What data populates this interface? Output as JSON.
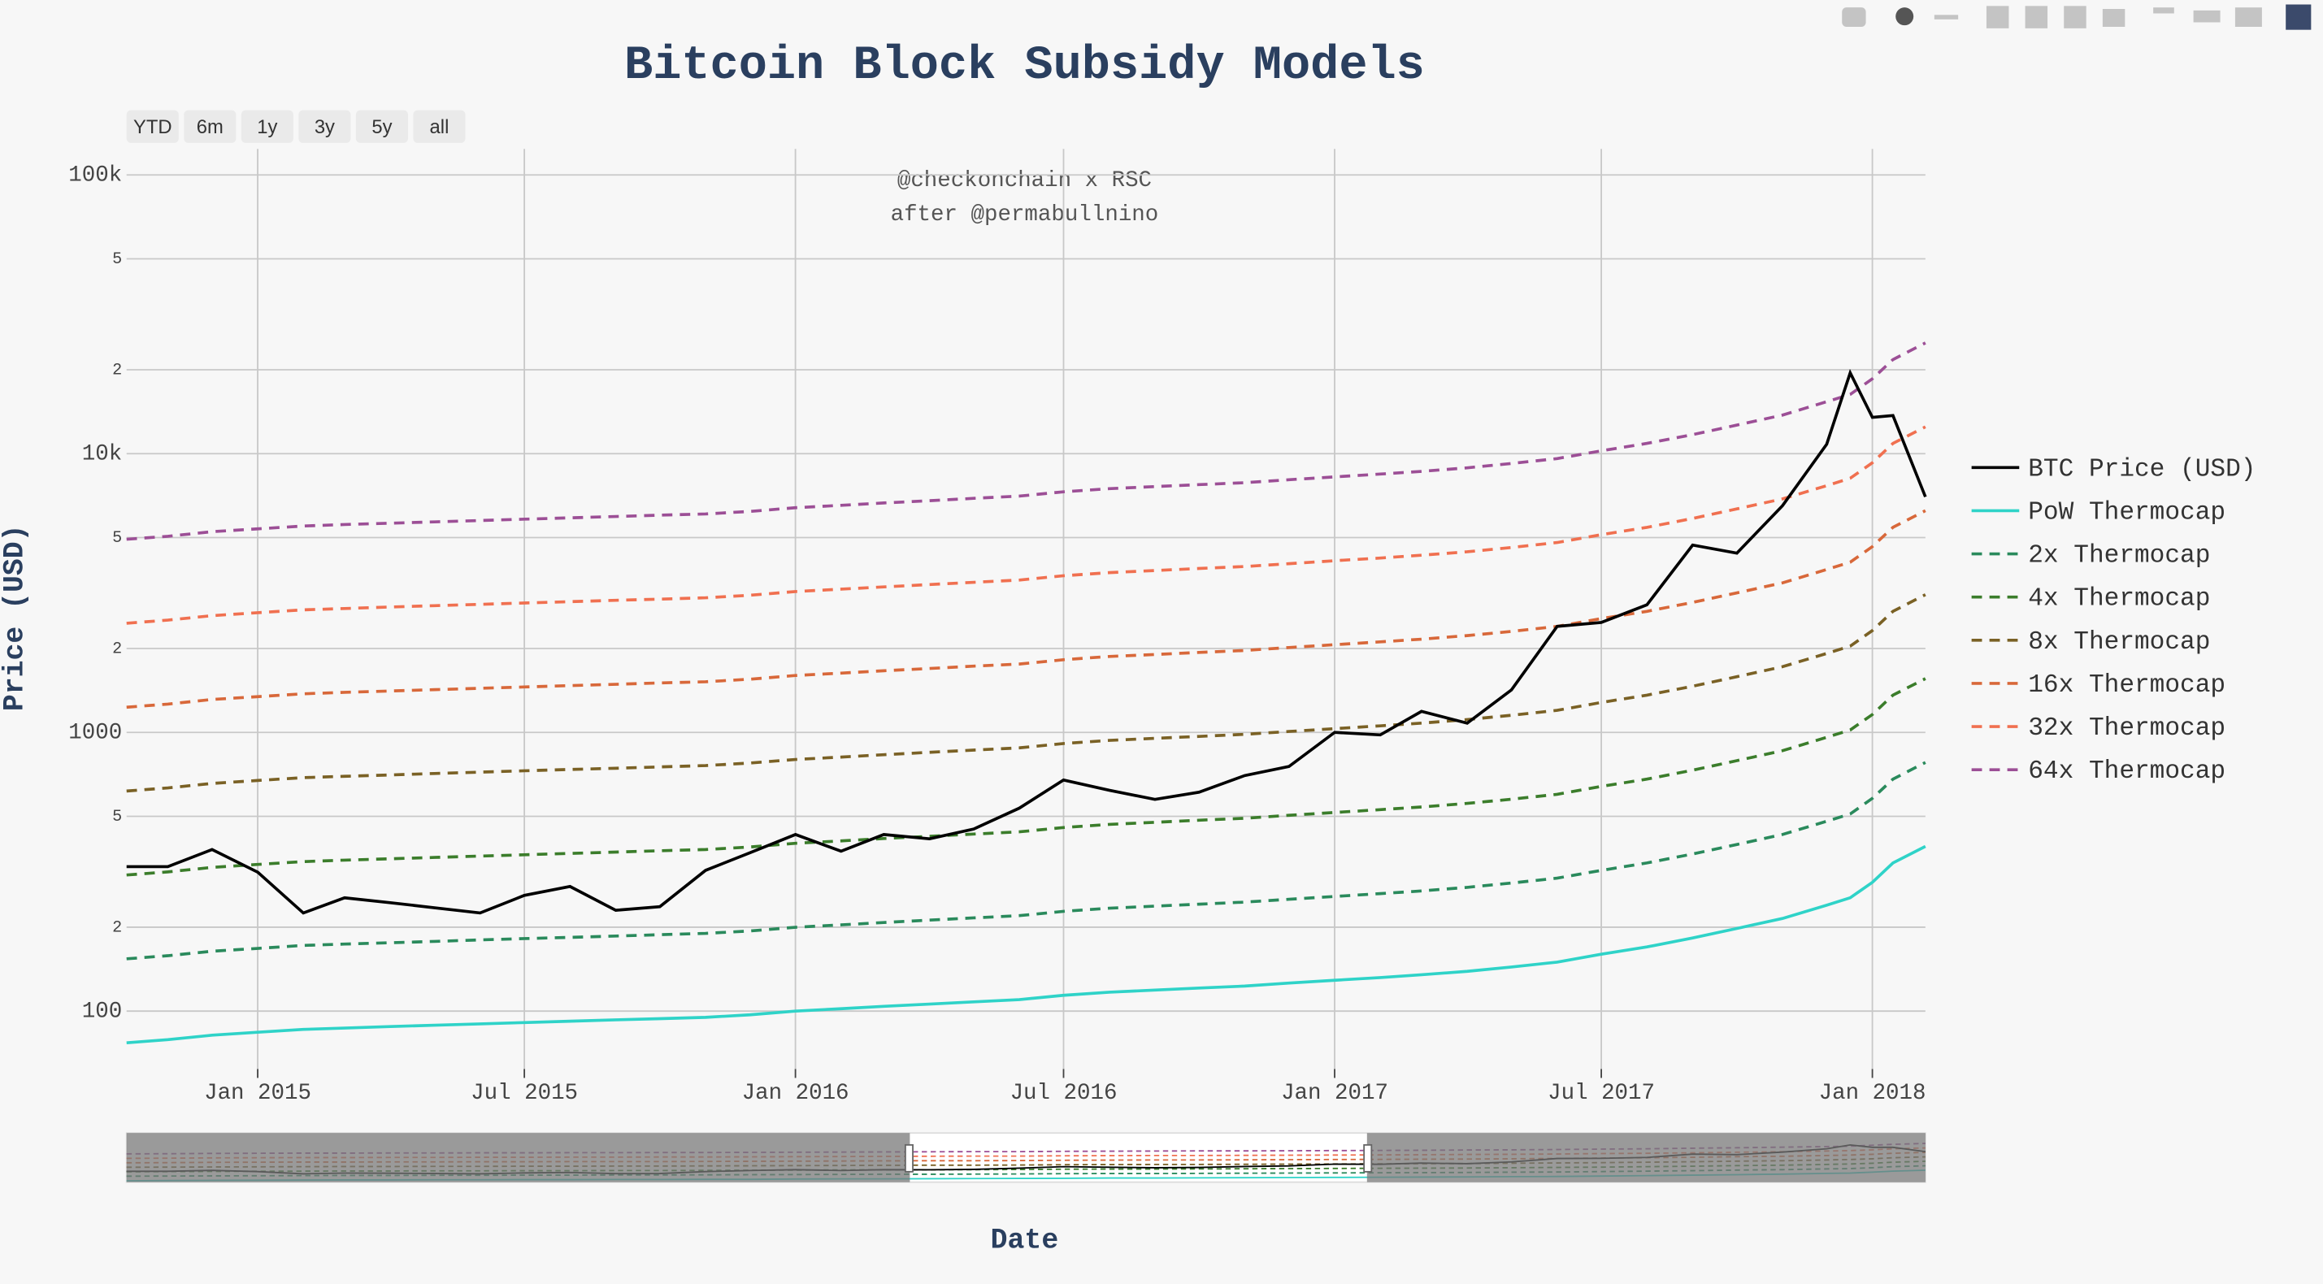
{
  "chart_data": {
    "type": "line",
    "title": "Bitcoin Block Subsidy Models",
    "annotations": [
      "@checkonchain x RSC",
      "after @permabullnino"
    ],
    "range_buttons": [
      "YTD",
      "6m",
      "1y",
      "3y",
      "5y",
      "all"
    ],
    "x_label": "Date",
    "y_label": "Price (USD)",
    "log_y": true,
    "grid": true,
    "legend": "right",
    "xlim": [
      "2014-10-04",
      "2018-02-06"
    ],
    "xticks": [
      {
        "value": "2015-01-01",
        "label": "Jan 2015"
      },
      {
        "value": "2015-07-01",
        "label": "Jul 2015"
      },
      {
        "value": "2016-01-01",
        "label": "Jan 2016"
      },
      {
        "value": "2016-07-01",
        "label": "Jul 2016"
      },
      {
        "value": "2017-01-01",
        "label": "Jan 2017"
      },
      {
        "value": "2017-07-01",
        "label": "Jul 2017"
      },
      {
        "value": "2018-01-01",
        "label": "Jan 2018"
      }
    ],
    "ylim": [
      62,
      124000
    ],
    "yticks": [
      100,
      {
        "value": 200,
        "label": "2"
      },
      {
        "value": 500,
        "label": "5"
      },
      1000,
      {
        "value": 2000,
        "label": "2"
      },
      {
        "value": 5000,
        "label": "5"
      },
      {
        "value": 10000,
        "label": "10k"
      },
      {
        "value": 20000,
        "label": "2"
      },
      {
        "value": 50000,
        "label": "5"
      },
      {
        "value": 100000,
        "label": "100k"
      }
    ],
    "x": [
      "2014-10-04",
      "2014-11-01",
      "2014-12-01",
      "2015-01-01",
      "2015-02-01",
      "2015-03-01",
      "2015-04-01",
      "2015-05-01",
      "2015-06-01",
      "2015-07-01",
      "2015-08-01",
      "2015-09-01",
      "2015-10-01",
      "2015-11-01",
      "2015-12-01",
      "2016-01-01",
      "2016-02-01",
      "2016-03-01",
      "2016-04-01",
      "2016-05-01",
      "2016-06-01",
      "2016-07-01",
      "2016-08-01",
      "2016-09-01",
      "2016-10-01",
      "2016-11-01",
      "2016-12-01",
      "2017-01-01",
      "2017-02-01",
      "2017-03-01",
      "2017-04-01",
      "2017-05-01",
      "2017-06-01",
      "2017-07-01",
      "2017-08-01",
      "2017-09-01",
      "2017-10-01",
      "2017-11-01",
      "2017-12-01",
      "2017-12-17",
      "2018-01-01",
      "2018-01-15",
      "2018-02-06"
    ],
    "series": [
      {
        "name": "BTC Price (USD)",
        "color": "#000000",
        "dash": false,
        "values": [
          330,
          330,
          380,
          315,
          225,
          255,
          245,
          235,
          225,
          260,
          280,
          230,
          237,
          320,
          370,
          430,
          375,
          430,
          415,
          450,
          535,
          675,
          620,
          575,
          610,
          700,
          755,
          1000,
          980,
          1190,
          1080,
          1420,
          2400,
          2480,
          2870,
          4700,
          4400,
          6500,
          10800,
          19500,
          13500,
          13700,
          7000
        ]
      },
      {
        "name": "PoW Thermocap",
        "color": "#2fd3c8",
        "dash": false,
        "values": [
          77,
          79,
          82,
          84,
          86,
          87,
          88,
          89,
          90,
          91,
          92,
          93,
          94,
          95,
          97,
          100,
          102,
          104,
          106,
          108,
          110,
          114,
          117,
          119,
          121,
          123,
          126,
          129,
          132,
          135,
          139,
          144,
          150,
          160,
          170,
          183,
          198,
          215,
          240,
          255,
          290,
          340,
          390
        ]
      },
      {
        "name": "2x Thermocap",
        "color": "#2a8a5c",
        "dash": true,
        "values": [
          154,
          158,
          164,
          168,
          172,
          174,
          176,
          178,
          180,
          182,
          184,
          186,
          188,
          190,
          194,
          200,
          204,
          208,
          212,
          216,
          220,
          228,
          234,
          238,
          242,
          246,
          252,
          258,
          264,
          270,
          278,
          288,
          300,
          320,
          340,
          366,
          396,
          430,
          480,
          510,
          580,
          680,
          780
        ]
      },
      {
        "name": "4x Thermocap",
        "color": "#3b7d2b",
        "dash": true,
        "values": [
          308,
          316,
          328,
          336,
          344,
          348,
          352,
          356,
          360,
          364,
          368,
          372,
          376,
          380,
          388,
          400,
          408,
          416,
          424,
          432,
          440,
          456,
          468,
          476,
          484,
          492,
          504,
          516,
          528,
          540,
          556,
          576,
          600,
          640,
          680,
          732,
          792,
          860,
          960,
          1020,
          1160,
          1360,
          1560
        ]
      },
      {
        "name": "8x Thermocap",
        "color": "#7a6125",
        "dash": true,
        "values": [
          616,
          632,
          656,
          672,
          688,
          696,
          704,
          712,
          720,
          728,
          736,
          744,
          752,
          760,
          776,
          800,
          816,
          832,
          848,
          864,
          880,
          912,
          936,
          952,
          968,
          984,
          1008,
          1032,
          1056,
          1080,
          1112,
          1152,
          1200,
          1280,
          1360,
          1464,
          1584,
          1720,
          1920,
          2040,
          2320,
          2720,
          3120
        ]
      },
      {
        "name": "16x Thermocap",
        "color": "#d8683a",
        "dash": true,
        "values": [
          1232,
          1264,
          1312,
          1344,
          1376,
          1392,
          1408,
          1424,
          1440,
          1456,
          1472,
          1488,
          1504,
          1520,
          1552,
          1600,
          1632,
          1664,
          1696,
          1728,
          1760,
          1824,
          1872,
          1904,
          1936,
          1968,
          2016,
          2064,
          2112,
          2160,
          2224,
          2304,
          2400,
          2560,
          2720,
          2928,
          3168,
          3440,
          3840,
          4080,
          4640,
          5440,
          6240
        ]
      },
      {
        "name": "32x Thermocap",
        "color": "#f07050",
        "dash": true,
        "values": [
          2464,
          2528,
          2624,
          2688,
          2752,
          2784,
          2816,
          2848,
          2880,
          2912,
          2944,
          2976,
          3008,
          3040,
          3104,
          3200,
          3264,
          3328,
          3392,
          3456,
          3520,
          3648,
          3744,
          3808,
          3872,
          3936,
          4032,
          4128,
          4224,
          4320,
          4448,
          4608,
          4800,
          5120,
          5440,
          5856,
          6336,
          6880,
          7680,
          8160,
          9280,
          10880,
          12480
        ]
      },
      {
        "name": "64x Thermocap",
        "color": "#9c4f96",
        "dash": true,
        "values": [
          4928,
          5056,
          5248,
          5376,
          5504,
          5568,
          5632,
          5696,
          5760,
          5824,
          5888,
          5952,
          6016,
          6080,
          6208,
          6400,
          6528,
          6656,
          6784,
          6912,
          7040,
          7296,
          7488,
          7616,
          7744,
          7872,
          8064,
          8256,
          8448,
          8640,
          8896,
          9216,
          9600,
          10240,
          10880,
          11712,
          12672,
          13760,
          15360,
          16320,
          18560,
          21760,
          24960
        ]
      }
    ]
  }
}
